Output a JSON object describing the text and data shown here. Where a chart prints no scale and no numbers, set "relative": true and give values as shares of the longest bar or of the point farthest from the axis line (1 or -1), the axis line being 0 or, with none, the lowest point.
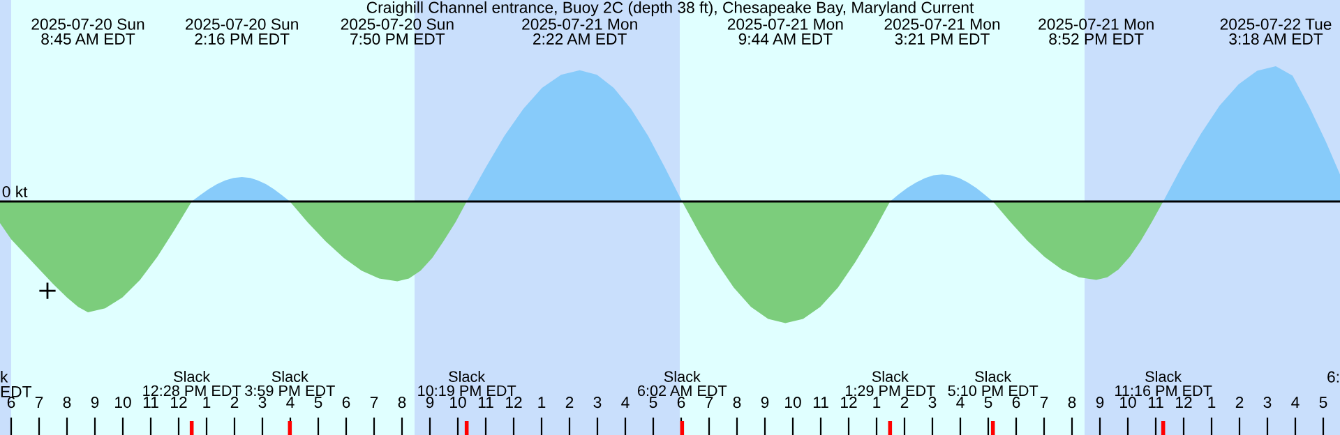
{
  "chart_data": {
    "type": "area",
    "title": "Craighill Channel entrance, Buoy 2C (depth 38 ft), Chesapeake Bay, Maryland Current",
    "relative": true,
    "xlim": [
      "2025-07-20T05:36",
      "2025-07-22T05:36"
    ],
    "xticks": [
      {
        "value": "2025-07-20T06:00",
        "label": "6"
      },
      {
        "value": "2025-07-20T07:00",
        "label": "7"
      },
      {
        "value": "2025-07-20T08:00",
        "label": "8"
      },
      {
        "value": "2025-07-20T09:00",
        "label": "9"
      },
      {
        "value": "2025-07-20T10:00",
        "label": "10"
      },
      {
        "value": "2025-07-20T11:00",
        "label": "11"
      },
      {
        "value": "2025-07-20T12:00",
        "label": "12"
      },
      {
        "value": "2025-07-20T13:00",
        "label": "1"
      },
      {
        "value": "2025-07-20T14:00",
        "label": "2"
      },
      {
        "value": "2025-07-20T15:00",
        "label": "3"
      },
      {
        "value": "2025-07-20T16:00",
        "label": "4"
      },
      {
        "value": "2025-07-20T17:00",
        "label": "5"
      },
      {
        "value": "2025-07-20T18:00",
        "label": "6"
      },
      {
        "value": "2025-07-20T19:00",
        "label": "7"
      },
      {
        "value": "2025-07-20T20:00",
        "label": "8"
      },
      {
        "value": "2025-07-20T21:00",
        "label": "9"
      },
      {
        "value": "2025-07-20T22:00",
        "label": "10"
      },
      {
        "value": "2025-07-20T23:00",
        "label": "11"
      },
      {
        "value": "2025-07-21T00:00",
        "label": "12"
      },
      {
        "value": "2025-07-21T01:00",
        "label": "1"
      },
      {
        "value": "2025-07-21T02:00",
        "label": "2"
      },
      {
        "value": "2025-07-21T03:00",
        "label": "3"
      },
      {
        "value": "2025-07-21T04:00",
        "label": "4"
      },
      {
        "value": "2025-07-21T05:00",
        "label": "5"
      },
      {
        "value": "2025-07-21T06:00",
        "label": "6"
      },
      {
        "value": "2025-07-21T07:00",
        "label": "7"
      },
      {
        "value": "2025-07-21T08:00",
        "label": "8"
      },
      {
        "value": "2025-07-21T09:00",
        "label": "9"
      },
      {
        "value": "2025-07-21T10:00",
        "label": "10"
      },
      {
        "value": "2025-07-21T11:00",
        "label": "11"
      },
      {
        "value": "2025-07-21T12:00",
        "label": "12"
      },
      {
        "value": "2025-07-21T13:00",
        "label": "1"
      },
      {
        "value": "2025-07-21T14:00",
        "label": "2"
      },
      {
        "value": "2025-07-21T15:00",
        "label": "3"
      },
      {
        "value": "2025-07-21T16:00",
        "label": "4"
      },
      {
        "value": "2025-07-21T17:00",
        "label": "5"
      },
      {
        "value": "2025-07-21T18:00",
        "label": "6"
      },
      {
        "value": "2025-07-21T19:00",
        "label": "7"
      },
      {
        "value": "2025-07-21T20:00",
        "label": "8"
      },
      {
        "value": "2025-07-21T21:00",
        "label": "9"
      },
      {
        "value": "2025-07-21T22:00",
        "label": "10"
      },
      {
        "value": "2025-07-21T23:00",
        "label": "11"
      },
      {
        "value": "2025-07-22T00:00",
        "label": "12"
      },
      {
        "value": "2025-07-22T01:00",
        "label": "1"
      },
      {
        "value": "2025-07-22T02:00",
        "label": "2"
      },
      {
        "value": "2025-07-22T03:00",
        "label": "3"
      },
      {
        "value": "2025-07-22T04:00",
        "label": "4"
      },
      {
        "value": "2025-07-22T05:00",
        "label": "5"
      }
    ],
    "series": [
      {
        "color": "#7ccd7c",
        "x": [
          "2025-07-20T05:36",
          "2025-07-20T06:00",
          "2025-07-20T06:30",
          "2025-07-20T07:00",
          "2025-07-20T07:30",
          "2025-07-20T08:00",
          "2025-07-20T08:24",
          "2025-07-20T08:45",
          "2025-07-20T09:22",
          "2025-07-20T09:59",
          "2025-07-20T10:37",
          "2025-07-20T11:14",
          "2025-07-20T11:51",
          "2025-07-20T12:28",
          "2025-07-20T15:59",
          "2025-07-20T16:37",
          "2025-07-20T17:16",
          "2025-07-20T17:55",
          "2025-07-20T18:33",
          "2025-07-20T19:11",
          "2025-07-20T19:50",
          "2025-07-20T20:15",
          "2025-07-20T20:40",
          "2025-07-20T21:05",
          "2025-07-20T21:29",
          "2025-07-20T21:55",
          "2025-07-20T22:19",
          "2025-07-21T06:02",
          "2025-07-21T06:39",
          "2025-07-21T07:16",
          "2025-07-21T07:53",
          "2025-07-21T08:30",
          "2025-07-21T09:07",
          "2025-07-21T09:44",
          "2025-07-21T10:22",
          "2025-07-21T10:59",
          "2025-07-21T11:37",
          "2025-07-21T12:14",
          "2025-07-21T12:52",
          "2025-07-21T13:29",
          "2025-07-21T17:10",
          "2025-07-21T17:47",
          "2025-07-21T18:24",
          "2025-07-21T19:01",
          "2025-07-21T19:38",
          "2025-07-21T20:15",
          "2025-07-21T20:52",
          "2025-07-21T21:16",
          "2025-07-21T21:40",
          "2025-07-21T22:04",
          "2025-07-21T22:28",
          "2025-07-21T22:52",
          "2025-07-21T23:16"
        ],
        "values": [
          -0.16,
          -0.28,
          -0.39,
          -0.5,
          -0.61,
          -0.71,
          -0.78,
          -0.82,
          -0.79,
          -0.71,
          -0.58,
          -0.41,
          -0.21,
          0,
          0,
          -0.153,
          -0.295,
          -0.417,
          -0.511,
          -0.57,
          -0.59,
          -0.57,
          -0.511,
          -0.417,
          -0.295,
          -0.153,
          0,
          0,
          -0.233,
          -0.45,
          -0.636,
          -0.779,
          -0.869,
          -0.9,
          -0.869,
          -0.779,
          -0.636,
          -0.45,
          -0.233,
          0,
          0,
          -0.15,
          -0.29,
          -0.41,
          -0.502,
          -0.56,
          -0.58,
          -0.56,
          -0.502,
          -0.41,
          -0.29,
          -0.15,
          0
        ]
      },
      {
        "color": "#87cbfa",
        "x": [
          "2025-07-20T12:28",
          "2025-07-20T12:46",
          "2025-07-20T13:04",
          "2025-07-20T13:22",
          "2025-07-20T13:40",
          "2025-07-20T13:58",
          "2025-07-20T14:16",
          "2025-07-20T14:34",
          "2025-07-20T14:50",
          "2025-07-20T15:08",
          "2025-07-20T15:25",
          "2025-07-20T15:42",
          "2025-07-20T15:59",
          "2025-07-20T22:19",
          "2025-07-20T23:00",
          "2025-07-20T23:40",
          "2025-07-21T00:21",
          "2025-07-21T01:01",
          "2025-07-21T01:42",
          "2025-07-21T02:22",
          "2025-07-21T02:59",
          "2025-07-21T03:35",
          "2025-07-21T04:12",
          "2025-07-21T04:49",
          "2025-07-21T05:25",
          "2025-07-21T06:02",
          "2025-07-21T13:29",
          "2025-07-21T13:47",
          "2025-07-21T14:06",
          "2025-07-21T14:25",
          "2025-07-21T14:44",
          "2025-07-21T15:02",
          "2025-07-21T15:21",
          "2025-07-21T15:39",
          "2025-07-21T15:58",
          "2025-07-21T16:16",
          "2025-07-21T16:34",
          "2025-07-21T16:52",
          "2025-07-21T17:10",
          "2025-07-21T23:16",
          "2025-07-21T23:56",
          "2025-07-22T00:37",
          "2025-07-22T01:17",
          "2025-07-22T01:58",
          "2025-07-22T02:38",
          "2025-07-22T03:18",
          "2025-07-22T03:54",
          "2025-07-22T04:30",
          "2025-07-22T05:06",
          "2025-07-22T05:36"
        ],
        "values": [
          0,
          0.047,
          0.09,
          0.127,
          0.156,
          0.174,
          0.18,
          0.174,
          0.156,
          0.127,
          0.09,
          0.047,
          0,
          0,
          0.251,
          0.485,
          0.686,
          0.84,
          0.937,
          0.97,
          0.937,
          0.84,
          0.686,
          0.485,
          0.251,
          0,
          0,
          0.052,
          0.1,
          0.141,
          0.173,
          0.193,
          0.2,
          0.193,
          0.173,
          0.141,
          0.1,
          0.052,
          0,
          0,
          0.259,
          0.5,
          0.707,
          0.866,
          0.966,
          1.0,
          0.93,
          0.7,
          0.44,
          0.2
        ]
      },
      {
        "type": "scatter",
        "marker": "cross",
        "color": "#000000",
        "x": [
          "2025-07-20T07:18"
        ],
        "values": [
          -0.66
        ]
      }
    ],
    "ref_lines": [
      {
        "axis": "y",
        "value": 0,
        "label": "0 kt",
        "color": "#000000"
      }
    ],
    "bands": [
      {
        "axis": "x",
        "from": "2025-07-20T05:36",
        "to": "2025-07-20T06:00",
        "color": "#c9dffc"
      },
      {
        "axis": "x",
        "from": "2025-07-20T06:00",
        "to": "2025-07-20T20:27",
        "color": "#e0ffff"
      },
      {
        "axis": "x",
        "from": "2025-07-20T20:27",
        "to": "2025-07-21T05:57",
        "color": "#c9dffc"
      },
      {
        "axis": "x",
        "from": "2025-07-21T05:57",
        "to": "2025-07-21T20:27",
        "color": "#e0ffff"
      },
      {
        "axis": "x",
        "from": "2025-07-21T20:27",
        "to": "2025-07-22T05:36",
        "color": "#c9dffc"
      }
    ],
    "annotations": [
      "2025-07-20 Sun\n8:45 AM EDT",
      "2025-07-20 Sun\n2:16 PM EDT",
      "2025-07-20 Sun\n7:50 PM EDT",
      "2025-07-21 Mon\n2:22 AM EDT",
      "2025-07-21 Mon\n9:44 AM EDT",
      "2025-07-21 Mon\n3:21 PM EDT",
      "2025-07-21 Mon\n8:52 PM EDT",
      "2025-07-22 Tue\n3:18 AM EDT",
      "Slack\n12:28 PM EDT",
      "Slack\n3:59 PM EDT",
      "Slack\n10:19 PM EDT",
      "Slack\n6:02 AM EDT",
      "Slack\n1:29 PM EDT",
      "Slack\n5:10 PM EDT",
      "Slack\n11:16 PM EDT",
      "k\nEDT",
      "6:"
    ],
    "grid": false,
    "legend": false
  }
}
